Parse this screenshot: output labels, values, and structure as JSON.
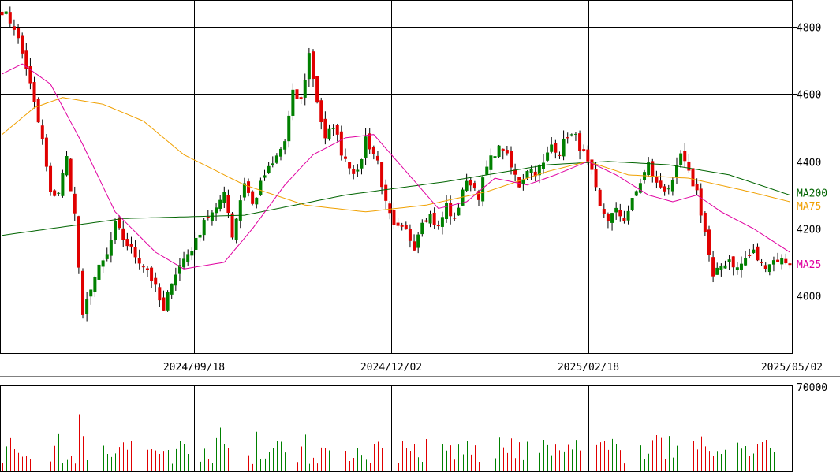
{
  "chart_data": {
    "type": "candlestick",
    "price": {
      "ylim": [
        3830,
        4880
      ],
      "y_ticks": [
        4000,
        4200,
        4400,
        4600,
        4800
      ],
      "x_ticks": [
        "2024/09/18",
        "2024/12/02",
        "2025/02/18",
        "2025/05/02"
      ],
      "x_tick_positions": [
        41,
        91,
        141,
        191
      ],
      "ma_labels": [
        {
          "name": "MA200",
          "color": "#006400"
        },
        {
          "name": "MA75",
          "color": "#f0a000"
        },
        {
          "name": "MA25",
          "color": "#e000a0"
        }
      ],
      "up_color": "#008000",
      "down_color": "#e00000",
      "anchors": [
        [
          0,
          4850
        ],
        [
          3,
          4800
        ],
        [
          6,
          4680
        ],
        [
          8,
          4570
        ],
        [
          10,
          4460
        ],
        [
          12,
          4300
        ],
        [
          14,
          4310
        ],
        [
          16,
          4410
        ],
        [
          18,
          4240
        ],
        [
          20,
          3930
        ],
        [
          22,
          4030
        ],
        [
          24,
          4080
        ],
        [
          26,
          4120
        ],
        [
          28,
          4210
        ],
        [
          30,
          4170
        ],
        [
          33,
          4120
        ],
        [
          36,
          4080
        ],
        [
          38,
          4020
        ],
        [
          40,
          3950
        ],
        [
          42,
          4050
        ],
        [
          45,
          4110
        ],
        [
          48,
          4160
        ],
        [
          50,
          4230
        ],
        [
          53,
          4250
        ],
        [
          55,
          4320
        ],
        [
          57,
          4180
        ],
        [
          60,
          4340
        ],
        [
          62,
          4270
        ],
        [
          65,
          4360
        ],
        [
          67,
          4390
        ],
        [
          70,
          4460
        ],
        [
          72,
          4600
        ],
        [
          74,
          4580
        ],
        [
          76,
          4720
        ],
        [
          78,
          4580
        ],
        [
          80,
          4460
        ],
        [
          82,
          4510
        ],
        [
          84,
          4430
        ],
        [
          86,
          4390
        ],
        [
          88,
          4360
        ],
        [
          90,
          4470
        ],
        [
          93,
          4400
        ],
        [
          95,
          4270
        ],
        [
          97,
          4200
        ],
        [
          100,
          4190
        ],
        [
          102,
          4150
        ],
        [
          104,
          4230
        ],
        [
          106,
          4240
        ],
        [
          108,
          4200
        ],
        [
          110,
          4270
        ],
        [
          112,
          4220
        ],
        [
          114,
          4320
        ],
        [
          116,
          4340
        ],
        [
          118,
          4300
        ],
        [
          120,
          4380
        ],
        [
          122,
          4430
        ],
        [
          124,
          4440
        ],
        [
          126,
          4380
        ],
        [
          128,
          4330
        ],
        [
          130,
          4380
        ],
        [
          132,
          4370
        ],
        [
          134,
          4390
        ],
        [
          136,
          4450
        ],
        [
          138,
          4430
        ],
        [
          140,
          4480
        ],
        [
          142,
          4470
        ],
        [
          144,
          4420
        ],
        [
          146,
          4360
        ],
        [
          148,
          4260
        ],
        [
          150,
          4230
        ],
        [
          152,
          4250
        ],
        [
          154,
          4230
        ],
        [
          156,
          4280
        ],
        [
          158,
          4340
        ],
        [
          160,
          4390
        ],
        [
          162,
          4330
        ],
        [
          164,
          4320
        ],
        [
          166,
          4330
        ],
        [
          168,
          4420
        ],
        [
          170,
          4360
        ],
        [
          172,
          4310
        ],
        [
          174,
          4190
        ],
        [
          176,
          4050
        ],
        [
          178,
          4090
        ],
        [
          180,
          4110
        ],
        [
          182,
          4080
        ],
        [
          184,
          4110
        ],
        [
          186,
          4130
        ],
        [
          188,
          4090
        ],
        [
          190,
          4100
        ],
        [
          192,
          4110
        ],
        [
          195,
          4100
        ]
      ],
      "ma200_anchors": [
        [
          0,
          4180
        ],
        [
          30,
          4230
        ],
        [
          60,
          4240
        ],
        [
          85,
          4300
        ],
        [
          110,
          4340
        ],
        [
          135,
          4390
        ],
        [
          150,
          4400
        ],
        [
          165,
          4390
        ],
        [
          180,
          4360
        ],
        [
          195,
          4300
        ]
      ],
      "ma75_anchors": [
        [
          0,
          4480
        ],
        [
          8,
          4560
        ],
        [
          15,
          4590
        ],
        [
          25,
          4570
        ],
        [
          35,
          4520
        ],
        [
          45,
          4420
        ],
        [
          60,
          4330
        ],
        [
          75,
          4270
        ],
        [
          90,
          4250
        ],
        [
          105,
          4270
        ],
        [
          120,
          4310
        ],
        [
          135,
          4370
        ],
        [
          145,
          4400
        ],
        [
          155,
          4360
        ],
        [
          170,
          4350
        ],
        [
          185,
          4310
        ],
        [
          195,
          4280
        ]
      ],
      "ma25_anchors": [
        [
          0,
          4660
        ],
        [
          5,
          4690
        ],
        [
          12,
          4630
        ],
        [
          20,
          4450
        ],
        [
          28,
          4250
        ],
        [
          38,
          4130
        ],
        [
          45,
          4080
        ],
        [
          55,
          4100
        ],
        [
          62,
          4200
        ],
        [
          70,
          4330
        ],
        [
          77,
          4420
        ],
        [
          85,
          4470
        ],
        [
          92,
          4480
        ],
        [
          100,
          4370
        ],
        [
          108,
          4260
        ],
        [
          115,
          4280
        ],
        [
          122,
          4350
        ],
        [
          130,
          4330
        ],
        [
          137,
          4360
        ],
        [
          145,
          4400
        ],
        [
          152,
          4360
        ],
        [
          160,
          4300
        ],
        [
          166,
          4280
        ],
        [
          172,
          4300
        ],
        [
          178,
          4250
        ],
        [
          186,
          4200
        ],
        [
          195,
          4130
        ]
      ]
    },
    "volume": {
      "ylim": [
        0,
        70000
      ],
      "y_ticks": [
        70000
      ],
      "spikes": [
        [
          8,
          44000
        ],
        [
          19,
          47000
        ],
        [
          72,
          70000
        ],
        [
          181,
          46000
        ]
      ],
      "base": 16000
    },
    "n_bars": 196
  }
}
